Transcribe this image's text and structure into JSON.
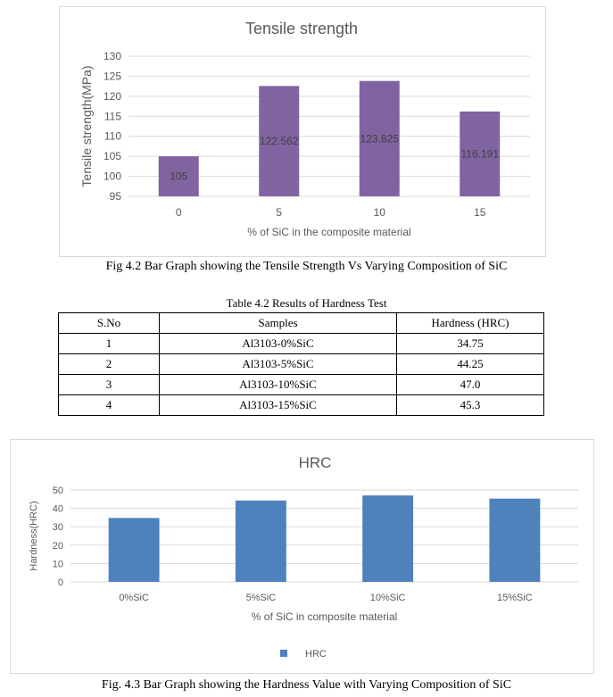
{
  "figure1": {
    "caption": "Fig 4.2 Bar Graph showing the Tensile Strength Vs Varying Composition of SiC",
    "chart_data": {
      "type": "bar",
      "title": "Tensile strength",
      "xlabel": "% of SiC in the composite material",
      "ylabel": "Tensile strength(MPa)",
      "categories": [
        "0",
        "5",
        "10",
        "15"
      ],
      "values": [
        105,
        122.562,
        123.825,
        116.191
      ],
      "data_labels": [
        "105",
        "122.562",
        "123.825",
        "116.191"
      ],
      "ylim": [
        95,
        130
      ],
      "yticks": [
        "95",
        "100",
        "105",
        "110",
        "115",
        "120",
        "125",
        "130"
      ],
      "grid": true,
      "bar_color": "#8064a2"
    }
  },
  "table": {
    "title": "Table 4.2 Results of Hardness Test",
    "headers": [
      "S.No",
      "Samples",
      "Hardness (HRC)"
    ],
    "rows": [
      [
        "1",
        "Al3103-0%SiC",
        "34.75"
      ],
      [
        "2",
        "Al3103-5%SiC",
        "44.25"
      ],
      [
        "3",
        "Al3103-10%SiC",
        "47.0"
      ],
      [
        "4",
        "Al3103-15%SiC",
        "45.3"
      ]
    ]
  },
  "figure2": {
    "caption": "Fig. 4.3 Bar Graph showing the Hardness Value with Varying Composition of SiC",
    "chart_data": {
      "type": "bar",
      "title": "HRC",
      "xlabel": "% of SiC in composite material",
      "ylabel": "Hardness(HRC)",
      "categories": [
        "0%SiC",
        "5%SiC",
        "10%SiC",
        "15%SiC"
      ],
      "series": [
        {
          "name": "HRC",
          "values": [
            34.75,
            44.25,
            47.0,
            45.3
          ]
        }
      ],
      "ylim": [
        0,
        50
      ],
      "yticks": [
        "0",
        "10",
        "20",
        "30",
        "40",
        "50"
      ],
      "grid": true,
      "legend": "bottom",
      "bar_color": "#4f81bd"
    }
  }
}
